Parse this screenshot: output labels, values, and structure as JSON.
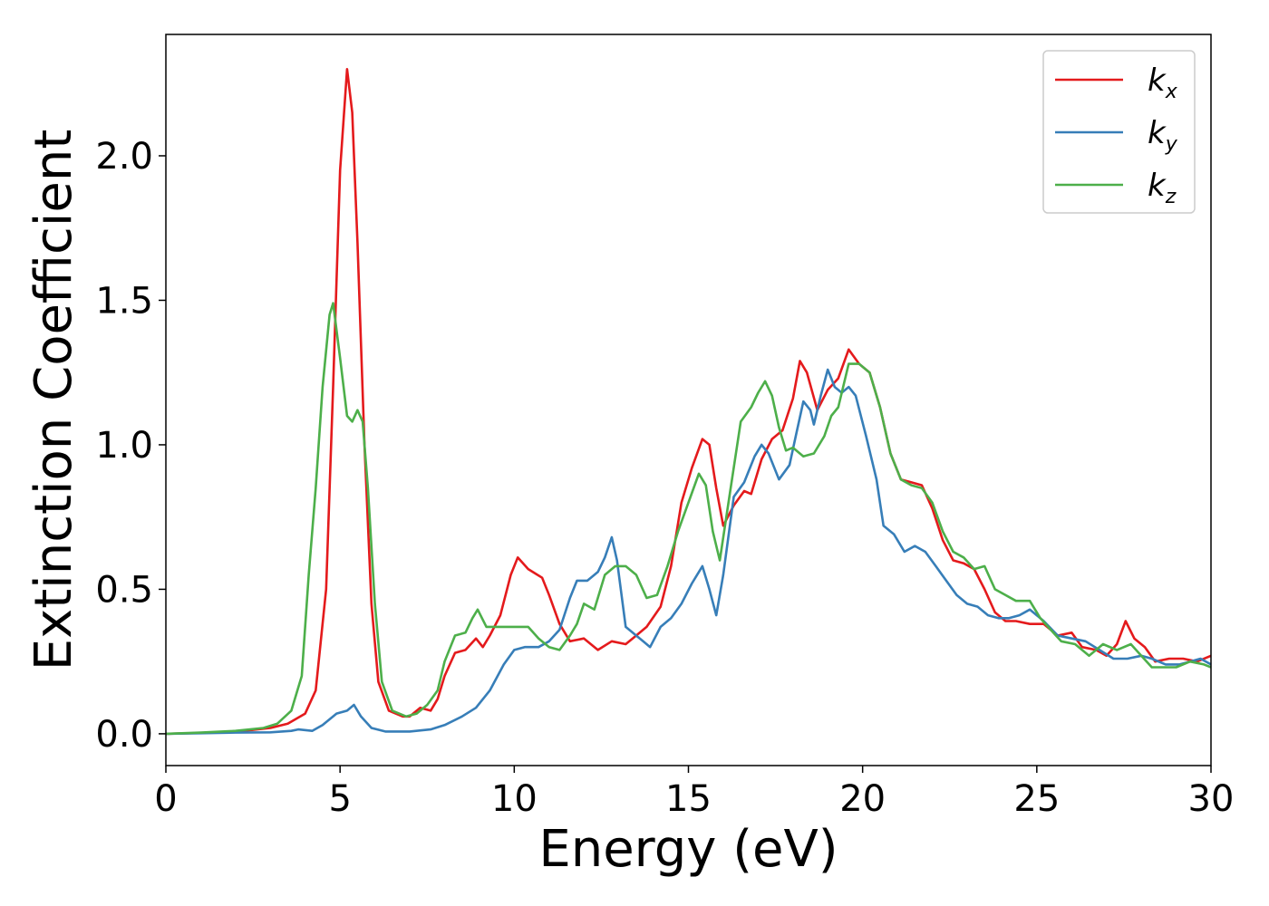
{
  "chart_data": {
    "type": "line",
    "xlabel": "Energy (eV)",
    "ylabel": "Extinction Coefficient",
    "xlim": [
      0,
      30
    ],
    "ylim": [
      -0.11,
      2.42
    ],
    "xticks": [
      0,
      5,
      10,
      15,
      20,
      25,
      30
    ],
    "yticks": [
      0.0,
      0.5,
      1.0,
      1.5,
      2.0
    ],
    "xtick_labels": [
      "0",
      "5",
      "10",
      "15",
      "20",
      "25",
      "30"
    ],
    "ytick_labels": [
      "0.0",
      "0.5",
      "1.0",
      "1.5",
      "2.0"
    ],
    "grid": false,
    "legend_position": "top-right",
    "series": [
      {
        "name": "k",
        "subscript": "x",
        "color": "#e41a1c",
        "points": [
          [
            0,
            0
          ],
          [
            1,
            0.003
          ],
          [
            2,
            0.007
          ],
          [
            3,
            0.02
          ],
          [
            3.5,
            0.035
          ],
          [
            4,
            0.07
          ],
          [
            4.3,
            0.15
          ],
          [
            4.6,
            0.5
          ],
          [
            4.8,
            1.2
          ],
          [
            5.0,
            1.95
          ],
          [
            5.2,
            2.3
          ],
          [
            5.35,
            2.15
          ],
          [
            5.5,
            1.7
          ],
          [
            5.7,
            1.0
          ],
          [
            5.9,
            0.45
          ],
          [
            6.1,
            0.18
          ],
          [
            6.4,
            0.08
          ],
          [
            6.8,
            0.06
          ],
          [
            7.0,
            0.06
          ],
          [
            7.3,
            0.09
          ],
          [
            7.6,
            0.08
          ],
          [
            7.8,
            0.12
          ],
          [
            8.0,
            0.2
          ],
          [
            8.3,
            0.28
          ],
          [
            8.6,
            0.29
          ],
          [
            8.9,
            0.33
          ],
          [
            9.1,
            0.3
          ],
          [
            9.3,
            0.34
          ],
          [
            9.6,
            0.41
          ],
          [
            9.9,
            0.55
          ],
          [
            10.1,
            0.61
          ],
          [
            10.4,
            0.57
          ],
          [
            10.8,
            0.54
          ],
          [
            11.0,
            0.48
          ],
          [
            11.3,
            0.38
          ],
          [
            11.6,
            0.32
          ],
          [
            12.0,
            0.33
          ],
          [
            12.4,
            0.29
          ],
          [
            12.8,
            0.32
          ],
          [
            13.2,
            0.31
          ],
          [
            13.5,
            0.34
          ],
          [
            13.8,
            0.37
          ],
          [
            14.2,
            0.44
          ],
          [
            14.5,
            0.58
          ],
          [
            14.8,
            0.8
          ],
          [
            15.1,
            0.92
          ],
          [
            15.4,
            1.02
          ],
          [
            15.6,
            1.0
          ],
          [
            15.8,
            0.85
          ],
          [
            16.0,
            0.72
          ],
          [
            16.3,
            0.79
          ],
          [
            16.6,
            0.84
          ],
          [
            16.8,
            0.83
          ],
          [
            17.1,
            0.95
          ],
          [
            17.4,
            1.02
          ],
          [
            17.7,
            1.05
          ],
          [
            18.0,
            1.16
          ],
          [
            18.2,
            1.29
          ],
          [
            18.4,
            1.25
          ],
          [
            18.7,
            1.12
          ],
          [
            19.0,
            1.19
          ],
          [
            19.3,
            1.23
          ],
          [
            19.6,
            1.33
          ],
          [
            19.9,
            1.28
          ],
          [
            20.2,
            1.25
          ],
          [
            20.5,
            1.13
          ],
          [
            20.8,
            0.97
          ],
          [
            21.1,
            0.88
          ],
          [
            21.4,
            0.87
          ],
          [
            21.7,
            0.86
          ],
          [
            22.0,
            0.78
          ],
          [
            22.3,
            0.67
          ],
          [
            22.6,
            0.6
          ],
          [
            22.9,
            0.59
          ],
          [
            23.2,
            0.57
          ],
          [
            23.5,
            0.5
          ],
          [
            23.8,
            0.42
          ],
          [
            24.1,
            0.39
          ],
          [
            24.4,
            0.39
          ],
          [
            24.8,
            0.38
          ],
          [
            25.2,
            0.38
          ],
          [
            25.6,
            0.34
          ],
          [
            26.0,
            0.35
          ],
          [
            26.3,
            0.3
          ],
          [
            26.7,
            0.29
          ],
          [
            27.0,
            0.27
          ],
          [
            27.3,
            0.31
          ],
          [
            27.55,
            0.39
          ],
          [
            27.8,
            0.33
          ],
          [
            28.1,
            0.3
          ],
          [
            28.4,
            0.25
          ],
          [
            28.8,
            0.26
          ],
          [
            29.2,
            0.26
          ],
          [
            29.6,
            0.25
          ],
          [
            30.0,
            0.27
          ]
        ]
      },
      {
        "name": "k",
        "subscript": "y",
        "color": "#377eb8",
        "points": [
          [
            0,
            0
          ],
          [
            1,
            0.002
          ],
          [
            2,
            0.004
          ],
          [
            3,
            0.005
          ],
          [
            3.6,
            0.01
          ],
          [
            3.8,
            0.015
          ],
          [
            4.2,
            0.01
          ],
          [
            4.5,
            0.03
          ],
          [
            4.9,
            0.07
          ],
          [
            5.2,
            0.08
          ],
          [
            5.4,
            0.1
          ],
          [
            5.6,
            0.06
          ],
          [
            5.9,
            0.02
          ],
          [
            6.3,
            0.008
          ],
          [
            7.0,
            0.008
          ],
          [
            7.6,
            0.015
          ],
          [
            8.0,
            0.03
          ],
          [
            8.5,
            0.06
          ],
          [
            8.9,
            0.09
          ],
          [
            9.3,
            0.15
          ],
          [
            9.7,
            0.24
          ],
          [
            10.0,
            0.29
          ],
          [
            10.3,
            0.3
          ],
          [
            10.7,
            0.3
          ],
          [
            11.0,
            0.32
          ],
          [
            11.3,
            0.36
          ],
          [
            11.6,
            0.47
          ],
          [
            11.8,
            0.53
          ],
          [
            12.1,
            0.53
          ],
          [
            12.4,
            0.56
          ],
          [
            12.6,
            0.61
          ],
          [
            12.8,
            0.68
          ],
          [
            12.95,
            0.6
          ],
          [
            13.2,
            0.37
          ],
          [
            13.5,
            0.34
          ],
          [
            13.7,
            0.32
          ],
          [
            13.9,
            0.3
          ],
          [
            14.2,
            0.37
          ],
          [
            14.5,
            0.4
          ],
          [
            14.8,
            0.45
          ],
          [
            15.1,
            0.52
          ],
          [
            15.4,
            0.58
          ],
          [
            15.6,
            0.5
          ],
          [
            15.8,
            0.41
          ],
          [
            16.0,
            0.55
          ],
          [
            16.3,
            0.82
          ],
          [
            16.6,
            0.87
          ],
          [
            16.9,
            0.96
          ],
          [
            17.1,
            1.0
          ],
          [
            17.3,
            0.97
          ],
          [
            17.6,
            0.88
          ],
          [
            17.9,
            0.93
          ],
          [
            18.1,
            1.04
          ],
          [
            18.3,
            1.15
          ],
          [
            18.5,
            1.12
          ],
          [
            18.6,
            1.07
          ],
          [
            18.8,
            1.17
          ],
          [
            19.0,
            1.26
          ],
          [
            19.2,
            1.2
          ],
          [
            19.4,
            1.18
          ],
          [
            19.6,
            1.2
          ],
          [
            19.8,
            1.17
          ],
          [
            20.1,
            1.03
          ],
          [
            20.4,
            0.88
          ],
          [
            20.6,
            0.72
          ],
          [
            20.9,
            0.69
          ],
          [
            21.2,
            0.63
          ],
          [
            21.5,
            0.65
          ],
          [
            21.8,
            0.63
          ],
          [
            22.1,
            0.58
          ],
          [
            22.4,
            0.53
          ],
          [
            22.7,
            0.48
          ],
          [
            23.0,
            0.45
          ],
          [
            23.3,
            0.44
          ],
          [
            23.6,
            0.41
          ],
          [
            23.9,
            0.4
          ],
          [
            24.2,
            0.4
          ],
          [
            24.5,
            0.41
          ],
          [
            24.8,
            0.43
          ],
          [
            25.2,
            0.39
          ],
          [
            25.6,
            0.34
          ],
          [
            26.0,
            0.33
          ],
          [
            26.4,
            0.32
          ],
          [
            26.8,
            0.29
          ],
          [
            27.2,
            0.26
          ],
          [
            27.6,
            0.26
          ],
          [
            28.0,
            0.27
          ],
          [
            28.3,
            0.26
          ],
          [
            28.7,
            0.24
          ],
          [
            29.1,
            0.24
          ],
          [
            29.4,
            0.25
          ],
          [
            29.7,
            0.26
          ],
          [
            30.0,
            0.24
          ]
        ]
      },
      {
        "name": "k",
        "subscript": "z",
        "color": "#4daf4a",
        "points": [
          [
            0,
            0
          ],
          [
            1,
            0.004
          ],
          [
            2,
            0.01
          ],
          [
            2.8,
            0.02
          ],
          [
            3.2,
            0.035
          ],
          [
            3.6,
            0.08
          ],
          [
            3.9,
            0.2
          ],
          [
            4.1,
            0.55
          ],
          [
            4.3,
            0.85
          ],
          [
            4.5,
            1.2
          ],
          [
            4.7,
            1.45
          ],
          [
            4.8,
            1.49
          ],
          [
            5.0,
            1.3
          ],
          [
            5.2,
            1.1
          ],
          [
            5.35,
            1.08
          ],
          [
            5.5,
            1.12
          ],
          [
            5.65,
            1.08
          ],
          [
            5.8,
            0.85
          ],
          [
            6.0,
            0.45
          ],
          [
            6.2,
            0.18
          ],
          [
            6.5,
            0.08
          ],
          [
            6.9,
            0.06
          ],
          [
            7.2,
            0.07
          ],
          [
            7.5,
            0.1
          ],
          [
            7.8,
            0.15
          ],
          [
            8.0,
            0.25
          ],
          [
            8.3,
            0.34
          ],
          [
            8.6,
            0.35
          ],
          [
            8.8,
            0.4
          ],
          [
            8.95,
            0.43
          ],
          [
            9.2,
            0.37
          ],
          [
            9.5,
            0.37
          ],
          [
            9.8,
            0.37
          ],
          [
            10.1,
            0.37
          ],
          [
            10.4,
            0.37
          ],
          [
            10.7,
            0.33
          ],
          [
            11.0,
            0.3
          ],
          [
            11.3,
            0.29
          ],
          [
            11.6,
            0.34
          ],
          [
            11.8,
            0.38
          ],
          [
            12.0,
            0.45
          ],
          [
            12.3,
            0.43
          ],
          [
            12.6,
            0.55
          ],
          [
            12.9,
            0.58
          ],
          [
            13.2,
            0.58
          ],
          [
            13.5,
            0.55
          ],
          [
            13.8,
            0.47
          ],
          [
            14.1,
            0.48
          ],
          [
            14.4,
            0.58
          ],
          [
            14.7,
            0.7
          ],
          [
            15.0,
            0.8
          ],
          [
            15.3,
            0.9
          ],
          [
            15.5,
            0.86
          ],
          [
            15.7,
            0.7
          ],
          [
            15.9,
            0.6
          ],
          [
            16.2,
            0.84
          ],
          [
            16.5,
            1.08
          ],
          [
            16.8,
            1.13
          ],
          [
            17.0,
            1.18
          ],
          [
            17.2,
            1.22
          ],
          [
            17.4,
            1.17
          ],
          [
            17.6,
            1.06
          ],
          [
            17.8,
            0.98
          ],
          [
            18.0,
            0.99
          ],
          [
            18.3,
            0.96
          ],
          [
            18.6,
            0.97
          ],
          [
            18.9,
            1.03
          ],
          [
            19.1,
            1.1
          ],
          [
            19.3,
            1.13
          ],
          [
            19.6,
            1.28
          ],
          [
            19.9,
            1.28
          ],
          [
            20.2,
            1.25
          ],
          [
            20.5,
            1.13
          ],
          [
            20.8,
            0.97
          ],
          [
            21.1,
            0.88
          ],
          [
            21.4,
            0.86
          ],
          [
            21.7,
            0.85
          ],
          [
            22.0,
            0.8
          ],
          [
            22.3,
            0.7
          ],
          [
            22.6,
            0.63
          ],
          [
            22.9,
            0.61
          ],
          [
            23.2,
            0.57
          ],
          [
            23.5,
            0.58
          ],
          [
            23.8,
            0.5
          ],
          [
            24.1,
            0.48
          ],
          [
            24.4,
            0.46
          ],
          [
            24.8,
            0.46
          ],
          [
            25.1,
            0.4
          ],
          [
            25.4,
            0.36
          ],
          [
            25.7,
            0.32
          ],
          [
            26.1,
            0.31
          ],
          [
            26.5,
            0.27
          ],
          [
            26.9,
            0.31
          ],
          [
            27.3,
            0.29
          ],
          [
            27.7,
            0.31
          ],
          [
            28.0,
            0.27
          ],
          [
            28.3,
            0.23
          ],
          [
            28.6,
            0.23
          ],
          [
            29.0,
            0.23
          ],
          [
            29.4,
            0.25
          ],
          [
            29.8,
            0.24
          ],
          [
            30.0,
            0.23
          ]
        ]
      }
    ]
  }
}
